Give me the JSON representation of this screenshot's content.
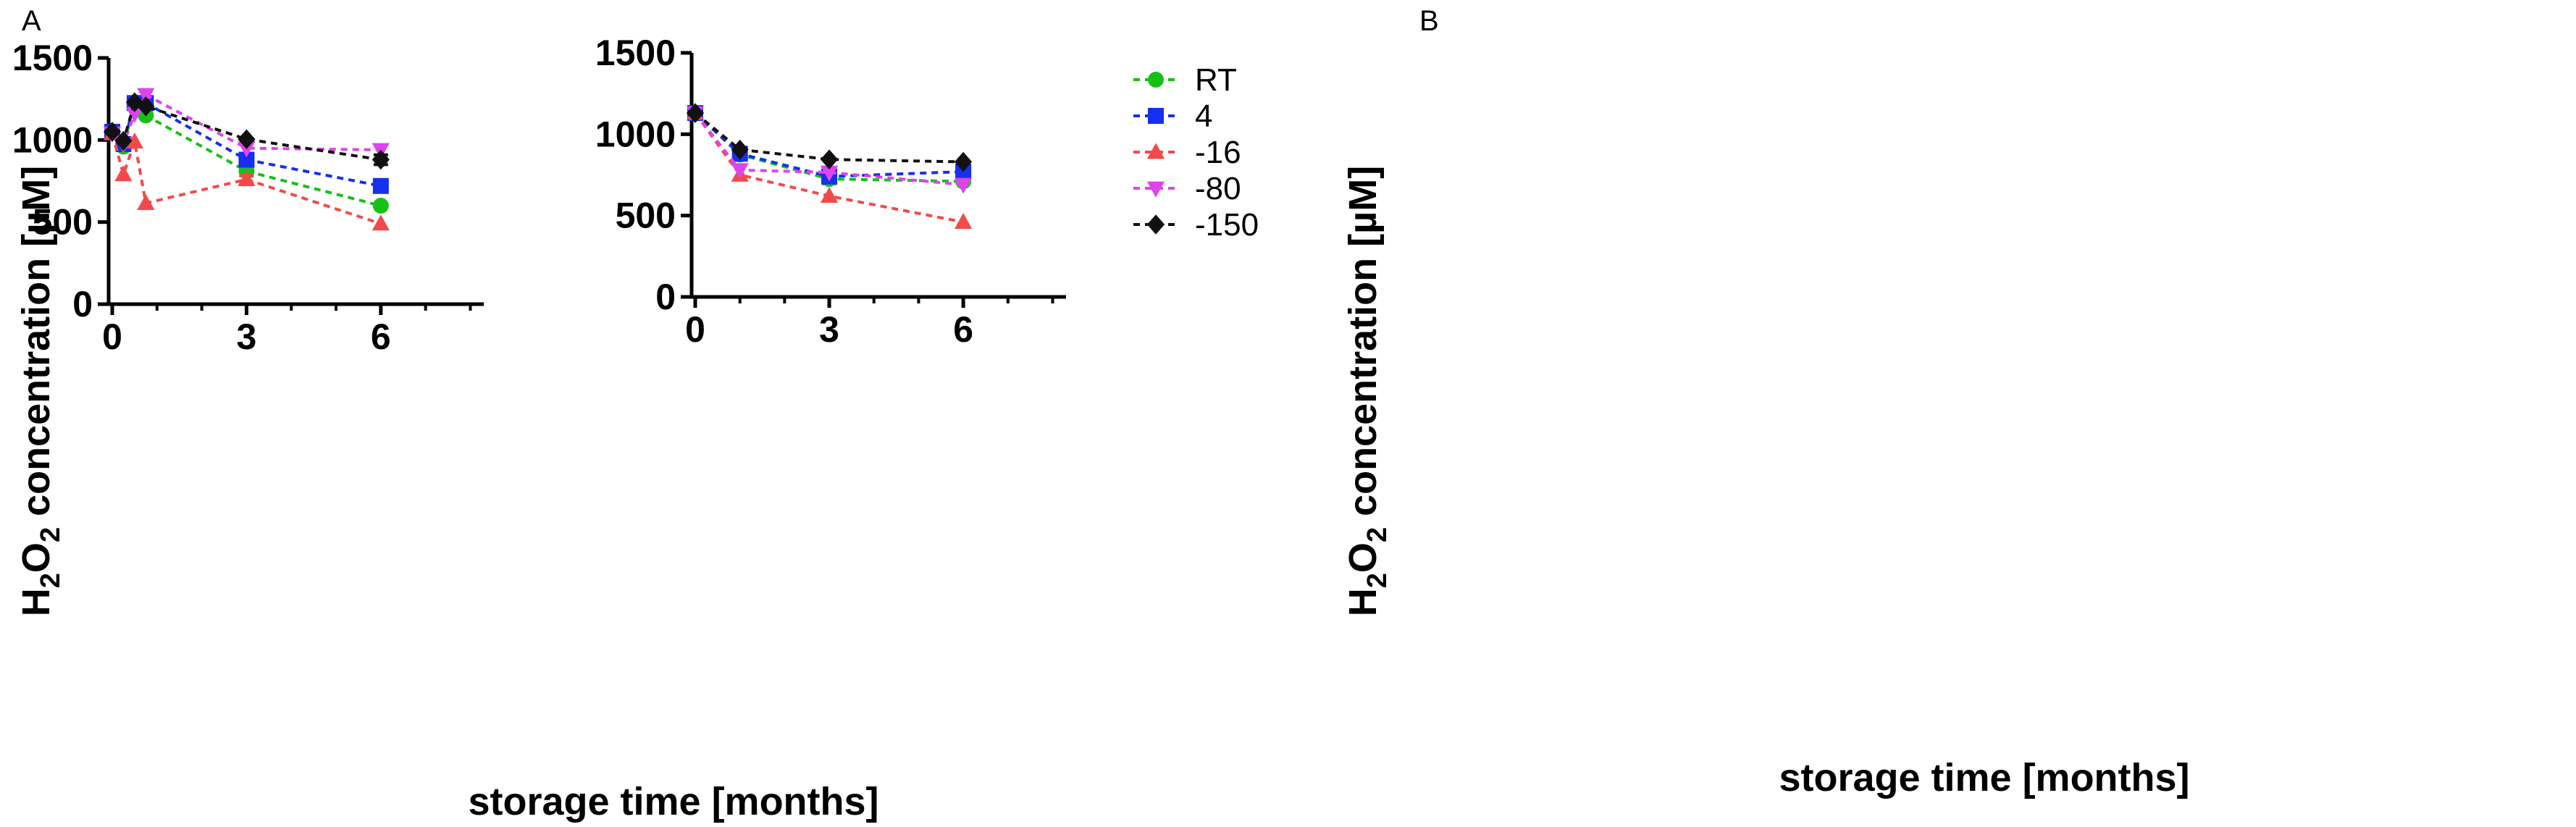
{
  "chart_data": [
    {
      "panel": "A",
      "type": "line",
      "title": "",
      "xlabel": "storage time [months]",
      "ylabel": "H2O2 concentration [µM]",
      "ylabel_parts": {
        "a": "H",
        "sub1": "2",
        "b": "O",
        "sub2": "2",
        "c": " concentration [µM]"
      },
      "xlim": [
        0,
        8.3
      ],
      "ylim": [
        0,
        1500
      ],
      "xticks": [
        0,
        3,
        6
      ],
      "yticks": [
        0,
        500,
        1000,
        1500
      ],
      "x_minor_ticks": [
        1,
        2,
        4,
        5,
        7,
        8
      ],
      "grid": false,
      "series": [
        {
          "name": "RT",
          "color": "#16c116",
          "marker": "circle",
          "x": [
            0,
            0.25,
            0.5,
            0.75,
            3,
            6
          ],
          "values": [
            1050,
            960,
            1230,
            1150,
            810,
            600
          ],
          "err": [
            null,
            null,
            null,
            null,
            30,
            null
          ]
        },
        {
          "name": "4",
          "color": "#1530ee",
          "marker": "square",
          "x": [
            0,
            0.25,
            0.5,
            0.75,
            3,
            6
          ],
          "values": [
            1050,
            975,
            1225,
            1225,
            880,
            720
          ],
          "err": [
            null,
            null,
            null,
            null,
            null,
            null
          ]
        },
        {
          "name": "-16",
          "color": "#f24a4a",
          "marker": "triangle-up",
          "x": [
            0,
            0.25,
            0.5,
            0.75,
            3,
            6
          ],
          "values": [
            1040,
            790,
            990,
            615,
            760,
            490
          ],
          "err": [
            null,
            null,
            null,
            null,
            25,
            null
          ]
        },
        {
          "name": "-80",
          "color": "#dd44ee",
          "marker": "triangle-down",
          "x": [
            0,
            0.25,
            0.5,
            0.75,
            3,
            6
          ],
          "values": [
            1040,
            975,
            1160,
            1275,
            950,
            940
          ],
          "err": [
            null,
            null,
            null,
            null,
            null,
            null
          ]
        },
        {
          "name": "-150",
          "color": "#111111",
          "marker": "diamond",
          "x": [
            0,
            0.25,
            0.5,
            0.75,
            3,
            6
          ],
          "values": [
            1050,
            995,
            1230,
            1205,
            1005,
            880
          ],
          "err": [
            null,
            null,
            null,
            null,
            null,
            30
          ]
        }
      ]
    },
    {
      "panel": "B",
      "type": "line",
      "title": "",
      "xlabel": "storage time [months]",
      "ylabel": "H2O2 concentration [µM]",
      "ylabel_parts": {
        "a": "H",
        "sub1": "2",
        "b": "O",
        "sub2": "2",
        "c": " concentration [µM]"
      },
      "xlim": [
        0,
        8.3
      ],
      "ylim": [
        0,
        1500
      ],
      "xticks": [
        0,
        3,
        6
      ],
      "yticks": [
        0,
        500,
        1000,
        1500
      ],
      "x_minor_ticks": [
        1,
        2,
        4,
        5,
        7,
        8
      ],
      "grid": false,
      "legend_position": "top-right",
      "series": [
        {
          "name": "RT",
          "color": "#16c116",
          "marker": "circle",
          "x": [
            0,
            1,
            3,
            6
          ],
          "values": [
            1130,
            875,
            725,
            710
          ],
          "err": [
            null,
            null,
            30,
            null
          ]
        },
        {
          "name": "4",
          "color": "#1530ee",
          "marker": "square",
          "x": [
            0,
            1,
            3,
            6
          ],
          "values": [
            1130,
            880,
            740,
            770
          ],
          "err": [
            null,
            null,
            35,
            null
          ]
        },
        {
          "name": "-16",
          "color": "#f24a4a",
          "marker": "triangle-up",
          "x": [
            0,
            1,
            3,
            6
          ],
          "values": [
            1130,
            750,
            620,
            460
          ],
          "err": [
            null,
            null,
            null,
            null
          ]
        },
        {
          "name": "-80",
          "color": "#dd44ee",
          "marker": "triangle-down",
          "x": [
            0,
            1,
            3,
            6
          ],
          "values": [
            1130,
            780,
            765,
            690
          ],
          "err": [
            null,
            null,
            null,
            null
          ]
        },
        {
          "name": "-150",
          "color": "#111111",
          "marker": "diamond",
          "x": [
            0,
            1,
            3,
            6
          ],
          "values": [
            1130,
            905,
            845,
            830
          ],
          "err": [
            null,
            null,
            null,
            null
          ]
        }
      ]
    }
  ]
}
